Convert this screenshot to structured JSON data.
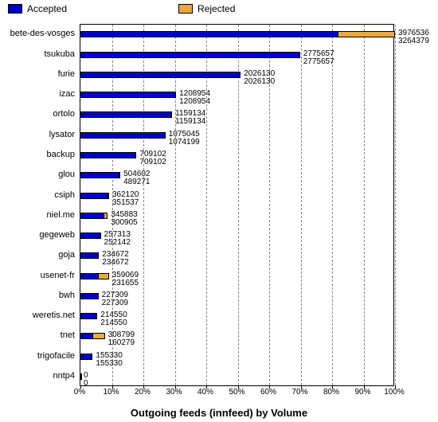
{
  "chart": {
    "type": "bar-horizontal-stacked",
    "title": "Outgoing feeds (innfeed) by Volume",
    "background_color": "#ffffff",
    "grid_color": "#888888",
    "legend": [
      {
        "label": "Accepted",
        "color": "#0000cc"
      },
      {
        "label": "Rejected",
        "color": "#e9a840"
      }
    ],
    "x_axis": {
      "ticks": [
        "0%",
        "10%",
        "20%",
        "30%",
        "40%",
        "50%",
        "60%",
        "70%",
        "80%",
        "90%",
        "100%"
      ],
      "min": 0,
      "max": 100,
      "step": 10
    },
    "max_value": 3976536,
    "rows": [
      {
        "label": "bete-des-vosges",
        "total": 3976536,
        "accepted": 3264379
      },
      {
        "label": "tsukuba",
        "total": 2775657,
        "accepted": 2775657
      },
      {
        "label": "furie",
        "total": 2026130,
        "accepted": 2026130
      },
      {
        "label": "izac",
        "total": 1208954,
        "accepted": 1208954
      },
      {
        "label": "ortolo",
        "total": 1159134,
        "accepted": 1159134
      },
      {
        "label": "lysator",
        "total": 1075045,
        "accepted": 1074199
      },
      {
        "label": "backup",
        "total": 709102,
        "accepted": 709102
      },
      {
        "label": "glou",
        "total": 504602,
        "accepted": 489271
      },
      {
        "label": "csiph",
        "total": 362120,
        "accepted": 351537
      },
      {
        "label": "niel.me",
        "total": 345883,
        "accepted": 300905
      },
      {
        "label": "gegeweb",
        "total": 257313,
        "accepted": 252142
      },
      {
        "label": "goja",
        "total": 234672,
        "accepted": 234672
      },
      {
        "label": "usenet-fr",
        "total": 359069,
        "accepted": 231655
      },
      {
        "label": "bwh",
        "total": 227309,
        "accepted": 227309
      },
      {
        "label": "weretis.net",
        "total": 214550,
        "accepted": 214550
      },
      {
        "label": "tnet",
        "total": 308799,
        "accepted": 160279
      },
      {
        "label": "trigofacile",
        "total": 155330,
        "accepted": 155330
      },
      {
        "label": "nntp4",
        "total": 0,
        "accepted": 0
      }
    ]
  }
}
